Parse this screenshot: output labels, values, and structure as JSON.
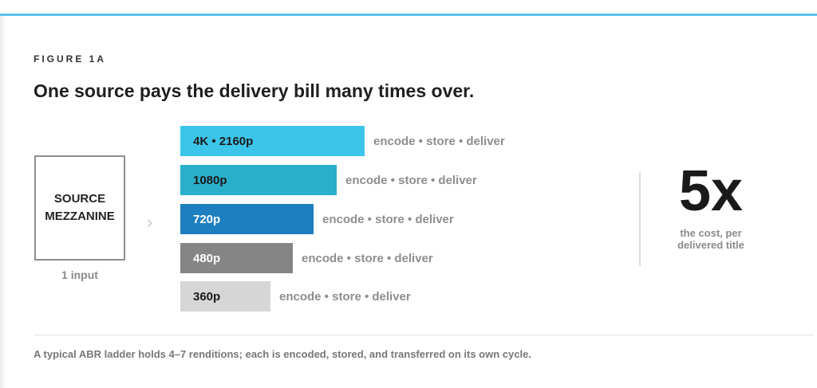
{
  "figure": {
    "label": "FIGURE 1A",
    "headline": "One source pays the delivery bill many times over."
  },
  "source": {
    "label": "SOURCE\nMEZZANINE",
    "caption": "1 input"
  },
  "colors": {
    "accent_rule": "#5bc0eb"
  },
  "renditions": [
    {
      "label": "4K • 2160p",
      "desc": "encode • store • deliver",
      "color": "#3cc5ea",
      "text_color": "#1a1a1a"
    },
    {
      "label": "1080p",
      "desc": "encode • store • deliver",
      "color": "#29afca",
      "text_color": "#1a1a1a"
    },
    {
      "label": "720p",
      "desc": "encode • store • deliver",
      "color": "#1e7fc0",
      "text_color": "#ffffff"
    },
    {
      "label": "480p",
      "desc": "encode • store • deliver",
      "color": "#858585",
      "text_color": "#ffffff"
    },
    {
      "label": "360p",
      "desc": "encode • store • deliver",
      "color": "#d6d6d6",
      "text_color": "#1a1a1a"
    }
  ],
  "stat": {
    "value": "5x",
    "caption": "the cost, per\ndelivered title"
  },
  "footnote": "A typical ABR ladder holds 4–7 renditions; each is encoded, stored, and transferred on its own cycle."
}
